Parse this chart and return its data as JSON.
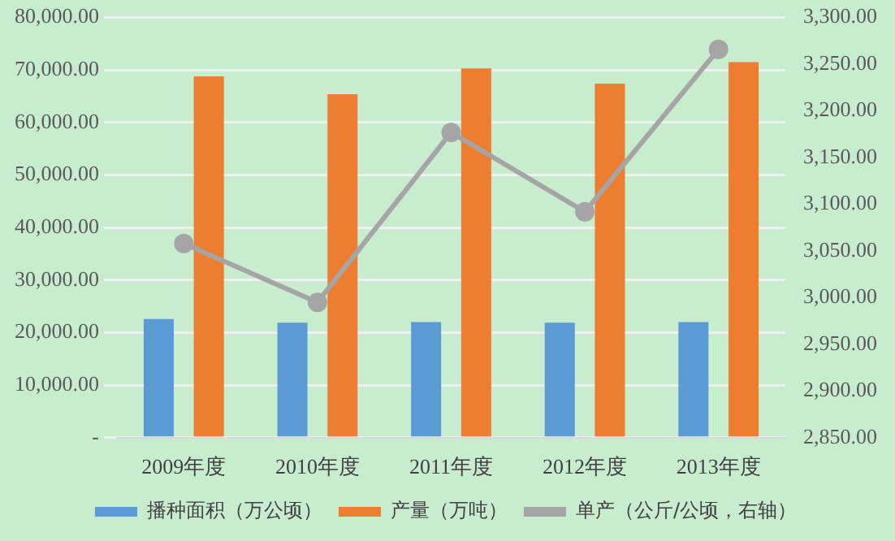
{
  "chart_data": {
    "type": "bar",
    "categories": [
      "2009年度",
      "2010年度",
      "2011年度",
      "2012年度",
      "2013年度"
    ],
    "series": [
      {
        "name": "播种面积（万公顷）",
        "color": "#5b9bd5",
        "values": [
          22600,
          21900,
          22000,
          21900,
          22000
        ]
      },
      {
        "name": "产量（万吨）",
        "color": "#ed7d31",
        "values": [
          68800,
          65400,
          70300,
          67400,
          71500
        ]
      },
      {
        "name": "单产（公斤/公顷，右轴）",
        "type": "line",
        "axis": "y2",
        "color": "#a5a5a5",
        "marker": "circle",
        "values": [
          3058,
          2995,
          3177,
          3092,
          3266
        ]
      }
    ],
    "ylim": [
      0,
      80000
    ],
    "yticks": [
      {
        "value": 0,
        "label": "-"
      },
      {
        "value": 10000,
        "label": "10,000.00"
      },
      {
        "value": 20000,
        "label": "20,000.00"
      },
      {
        "value": 30000,
        "label": "30,000.00"
      },
      {
        "value": 40000,
        "label": "40,000.00"
      },
      {
        "value": 50000,
        "label": "50,000.00"
      },
      {
        "value": 60000,
        "label": "60,000.00"
      },
      {
        "value": 70000,
        "label": "70,000.00"
      },
      {
        "value": 80000,
        "label": "80,000.00"
      }
    ],
    "y2lim": [
      2850,
      3300
    ],
    "y2ticks": [
      {
        "value": 2850,
        "label": "2,850.00"
      },
      {
        "value": 2900,
        "label": "2,900.00"
      },
      {
        "value": 2950,
        "label": "2,950.00"
      },
      {
        "value": 3000,
        "label": "3,000.00"
      },
      {
        "value": 3050,
        "label": "3,050.00"
      },
      {
        "value": 3100,
        "label": "3,100.00"
      },
      {
        "value": 3150,
        "label": "3,150.00"
      },
      {
        "value": 3200,
        "label": "3,200.00"
      },
      {
        "value": 3250,
        "label": "3,250.00"
      },
      {
        "value": 3300,
        "label": "3,300.00"
      }
    ],
    "grid": "y",
    "legend": "bottom"
  }
}
